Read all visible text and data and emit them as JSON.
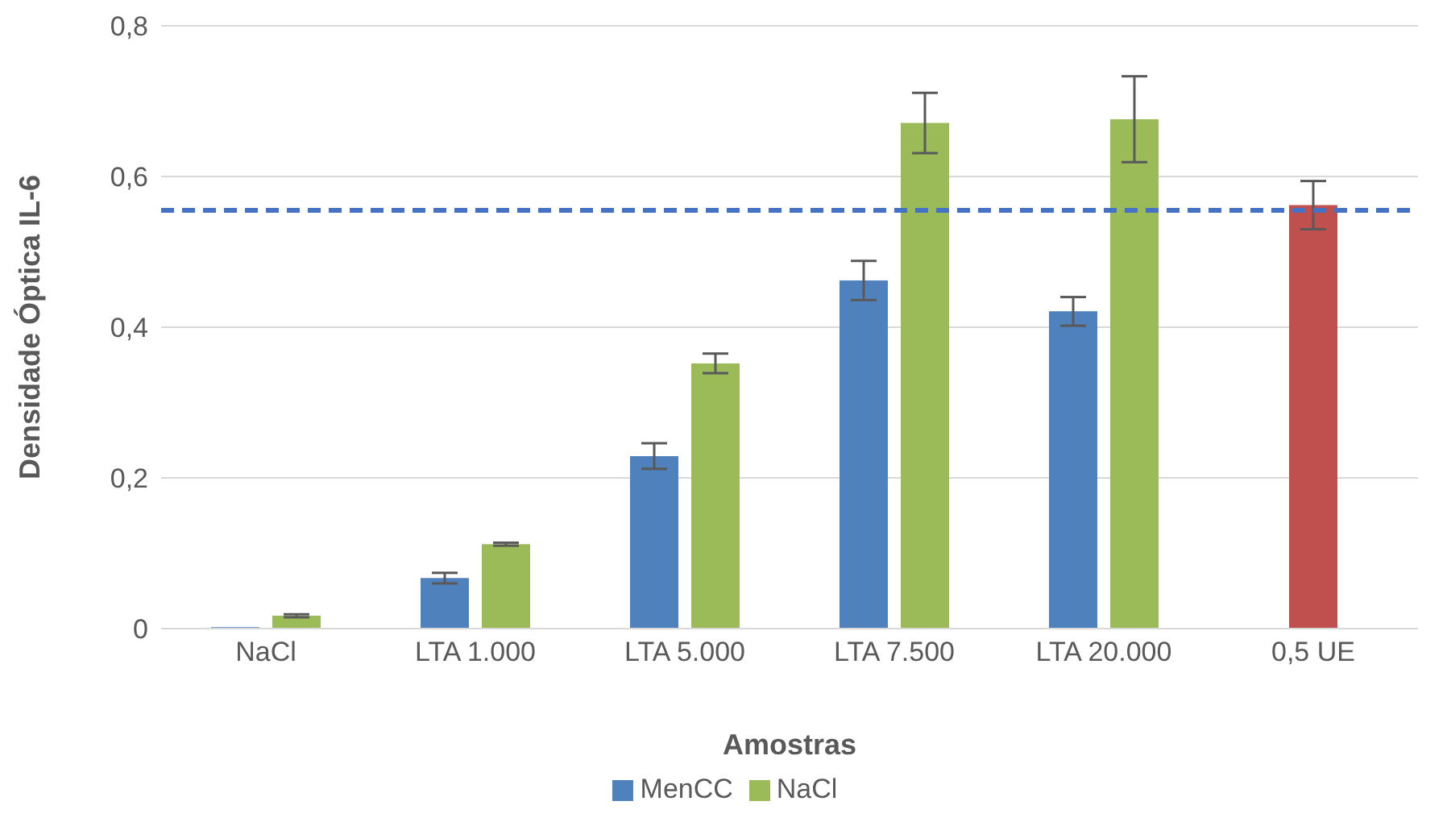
{
  "chart_data": {
    "type": "bar",
    "xlabel": "Amostras",
    "ylabel": "Densidade Óptica IL-6",
    "categories": [
      "NaCl",
      "LTA 1.000",
      "LTA 5.000",
      "LTA 7.500",
      "LTA 20.000",
      "0,5 UE"
    ],
    "series": [
      {
        "name": "MenCC",
        "color": "#4f81bd",
        "values": [
          0.002,
          0.067,
          0.229,
          0.462,
          0.421,
          null
        ],
        "errors": [
          null,
          0.007,
          0.017,
          0.026,
          0.019,
          null
        ]
      },
      {
        "name": "NaCl",
        "color": "#9bbb59",
        "values": [
          0.017,
          0.112,
          0.352,
          0.671,
          0.676,
          null
        ],
        "errors": [
          0.002,
          0.002,
          0.013,
          0.04,
          0.057,
          null
        ]
      },
      {
        "color": "#c0504d",
        "values": [
          null,
          null,
          null,
          null,
          null,
          0.562
        ],
        "errors": [
          null,
          null,
          null,
          null,
          null,
          0.032
        ]
      }
    ],
    "ylim": [
      0,
      0.8
    ],
    "yticks": [
      0,
      {
        "value": 0.2,
        "label": "0,2"
      },
      {
        "value": 0.4,
        "label": "0,4"
      },
      {
        "value": 0.6,
        "label": "0,6"
      },
      {
        "value": 0.8,
        "label": "0,8"
      }
    ],
    "ref_lines": [
      {
        "axis": "y",
        "value": 0.555,
        "color": "#4472c4",
        "line_style": "dashed"
      }
    ],
    "grid": "y",
    "legend": "bottom"
  }
}
